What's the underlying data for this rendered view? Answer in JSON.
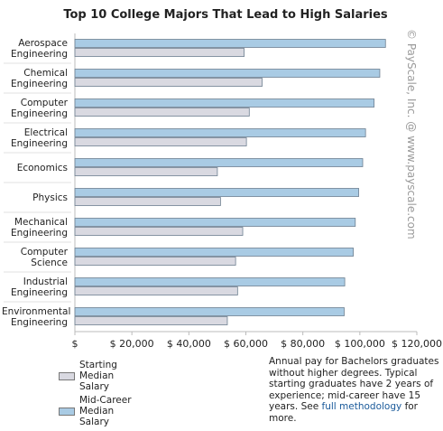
{
  "chart_data": {
    "type": "bar",
    "orientation": "horizontal",
    "title": "Top 10 College Majors That Lead to High Salaries",
    "categories": [
      "Aerospace Engineering",
      "Chemical Engineering",
      "Computer Engineering",
      "Electrical Engineering",
      "Economics",
      "Physics",
      "Mechanical Engineering",
      "Computer Science",
      "Industrial Engineering",
      "Environmental Engineering"
    ],
    "series": [
      {
        "name": "Mid-Career Median Salary",
        "color": "#a9cbe4",
        "values": [
          109000,
          107000,
          105000,
          102000,
          101000,
          99600,
          98400,
          97700,
          94700,
          94500
        ]
      },
      {
        "name": "Starting Median Salary",
        "color": "#d9d9e1",
        "values": [
          59400,
          65700,
          61200,
          60200,
          50000,
          51100,
          58900,
          56400,
          57100,
          53500
        ]
      }
    ],
    "xlim": [
      0,
      120000
    ],
    "xticks": [
      {
        "value": 0,
        "label": "$"
      },
      {
        "value": 20000,
        "label": "$ 20,000"
      },
      {
        "value": 40000,
        "label": "$ 40,000"
      },
      {
        "value": 60000,
        "label": "$ 60,000"
      },
      {
        "value": 80000,
        "label": "$ 80,000"
      },
      {
        "value": 100000,
        "label": "$ 100,000"
      },
      {
        "value": 120000,
        "label": "$ 120,000"
      }
    ],
    "grid": false,
    "legend": "bottom-left",
    "watermark": "© PayScale, Inc. @ www.payscale.com",
    "note": "Annual pay for Bachelors graduates without higher degrees. Typical starting graduates have 2 years of experience; mid-career have 15 years. See",
    "note_link": "full methodology",
    "note_end": "for more."
  }
}
